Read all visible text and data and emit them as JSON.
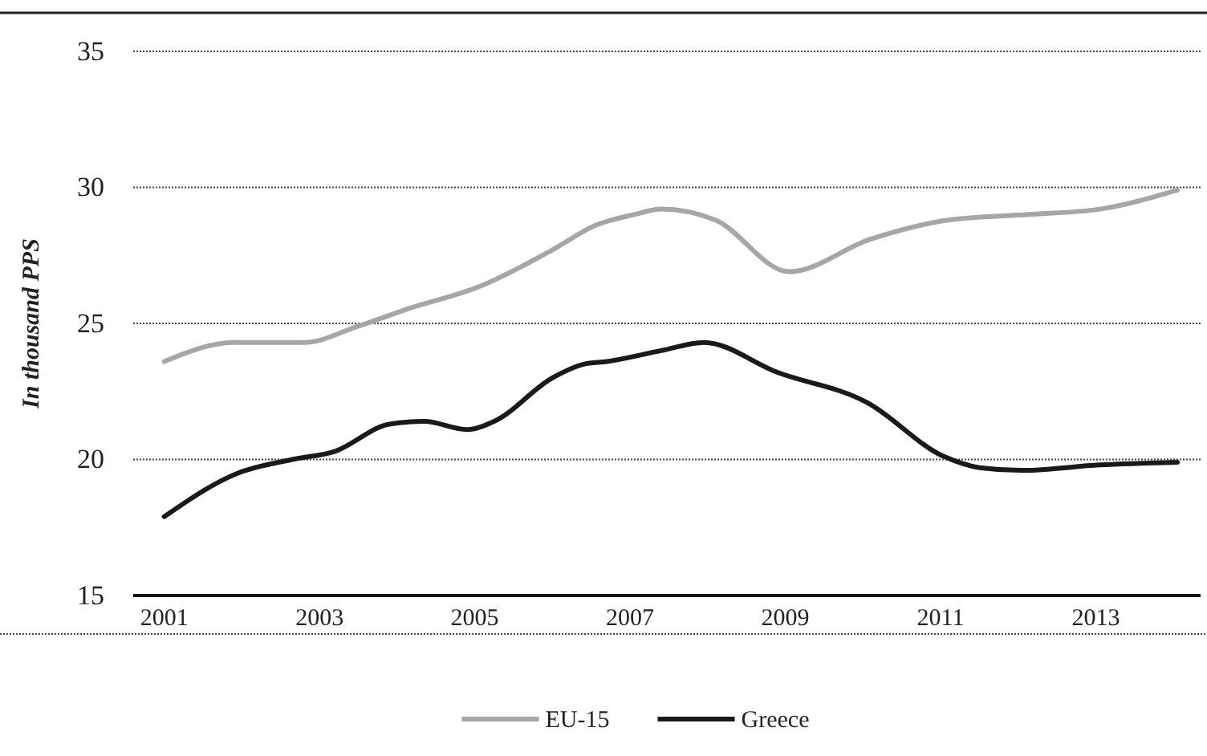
{
  "chart_data": {
    "type": "line",
    "ylabel": "In thousand PPS",
    "xlim": [
      2000.6,
      2014.35
    ],
    "xticks": [
      2001,
      2003,
      2005,
      2007,
      2009,
      2011,
      2013
    ],
    "ylim": [
      15,
      35
    ],
    "yticks": [
      15,
      20,
      25,
      30,
      35
    ],
    "grid": "y",
    "legend": "bottom",
    "line_style": "solid",
    "marker": "none",
    "series": [
      {
        "name": "EU-15",
        "color": "#a6a6a6",
        "x": [
          2001,
          2001.9,
          2002.8,
          2003.5,
          2004.1,
          2005.1,
          2006.0,
          2006.55,
          2007.05,
          2007.4,
          2008.1,
          2009.05,
          2010.1,
          2011.1,
          2012.1,
          2013.05,
          2014.05
        ],
        "values": [
          23.6,
          24.3,
          24.3,
          24.9,
          25.5,
          26.4,
          27.7,
          28.6,
          29.0,
          29.2,
          28.8,
          26.9,
          28.1,
          28.8,
          29.0,
          29.2,
          29.9
        ]
      },
      {
        "name": "Greece",
        "color": "#1a1a1a",
        "x": [
          2001,
          2001.95,
          2002.65,
          2003.2,
          2003.9,
          2004.35,
          2004.9,
          2005.25,
          2006.0,
          2006.4,
          2006.7,
          2007.4,
          2007.95,
          2008.9,
          2010.05,
          2011.05,
          2011.5,
          2012.05,
          2013.05,
          2014.05
        ],
        "values": [
          17.9,
          19.5,
          20.0,
          20.3,
          21.3,
          21.4,
          21.1,
          21.4,
          23.0,
          23.5,
          23.6,
          24.0,
          24.3,
          23.2,
          22.1,
          20.1,
          19.7,
          19.6,
          19.8,
          19.9
        ]
      }
    ]
  }
}
